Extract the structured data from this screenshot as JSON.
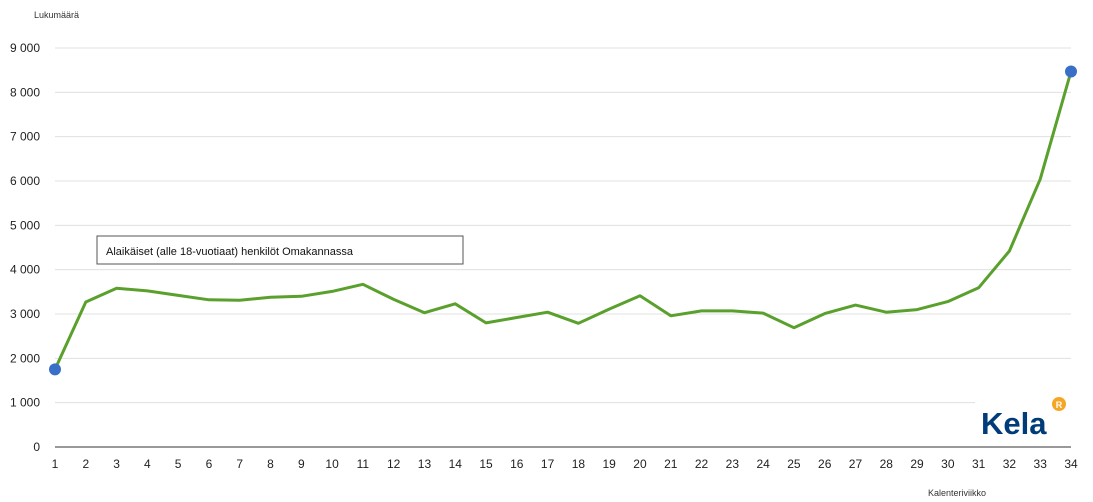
{
  "chart_data": {
    "type": "line",
    "ylabel": "Lukumäärä",
    "xlabel": "Kalenteriviikko",
    "ylim": [
      0,
      9000
    ],
    "yticks": [
      0,
      1000,
      2000,
      3000,
      4000,
      5000,
      6000,
      7000,
      8000,
      9000
    ],
    "ytick_labels": [
      "0",
      "1 000",
      "2 000",
      "3 000",
      "4 000",
      "5 000",
      "6 000",
      "7 000",
      "8 000",
      "9 000"
    ],
    "categories": [
      "1",
      "2",
      "3",
      "4",
      "5",
      "6",
      "7",
      "8",
      "9",
      "10",
      "11",
      "12",
      "13",
      "14",
      "15",
      "16",
      "17",
      "18",
      "19",
      "20",
      "21",
      "22",
      "23",
      "24",
      "25",
      "26",
      "27",
      "28",
      "29",
      "30",
      "31",
      "32",
      "33",
      "34"
    ],
    "series": [
      {
        "name": "Alaikäiset (alle 18-vuotiaat) henkilöt Omakannassa",
        "color": "#5aa02c",
        "values": [
          1750,
          3270,
          3580,
          3520,
          3420,
          3320,
          3310,
          3380,
          3400,
          3510,
          3670,
          3330,
          3030,
          3230,
          2800,
          2920,
          3040,
          2790,
          3110,
          3410,
          2960,
          3070,
          3070,
          3020,
          2690,
          3010,
          3200,
          3040,
          3100,
          3280,
          3590,
          4420,
          6040,
          8470
        ]
      }
    ],
    "highlighted_points": [
      0,
      33
    ],
    "highlight_color": "#3a6fc9",
    "grid": true,
    "legend": {
      "placement": "upper-left",
      "label": "Alaikäiset (alle 18-vuotiaat) henkilöt Omakannassa"
    }
  },
  "logo": {
    "text": "Kela",
    "color": "#003b7a",
    "badge_color": "#f5a623",
    "badge_letter": "R"
  }
}
